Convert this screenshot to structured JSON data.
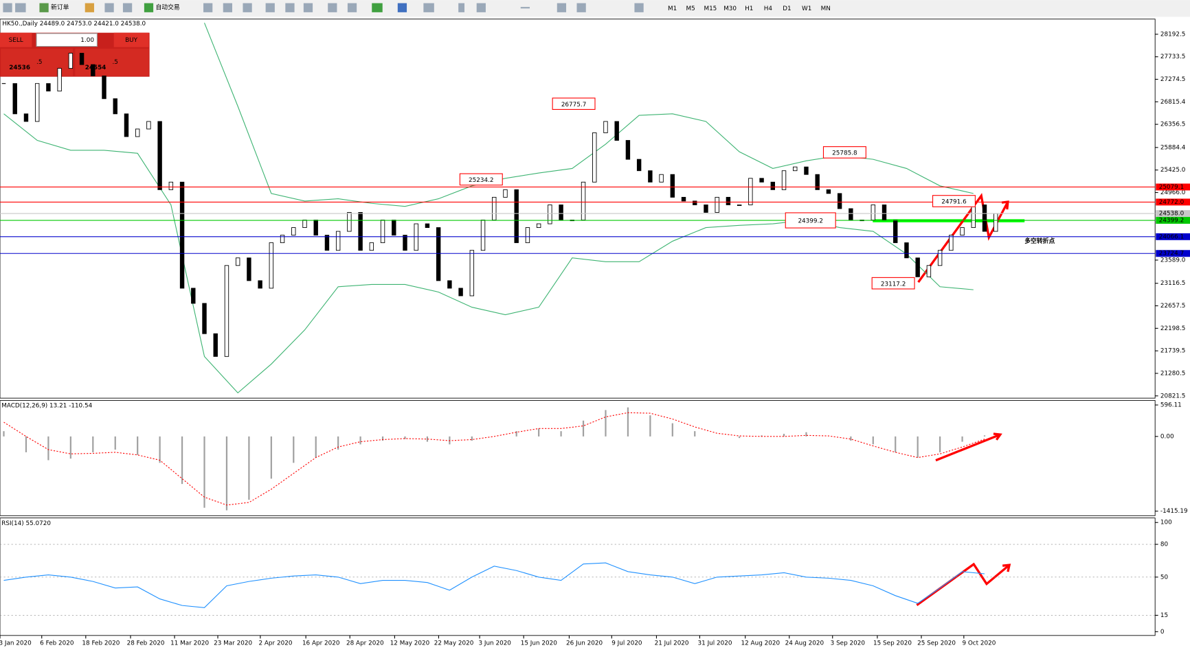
{
  "toolbar": {
    "new_order": "新订单",
    "auto_trading": "自动交易",
    "timeframes": [
      "M1",
      "M5",
      "M15",
      "M30",
      "H1",
      "H4",
      "D1",
      "W1",
      "MN"
    ]
  },
  "trade_panel": {
    "sell": "SELL",
    "lot": "1.00",
    "buy": "BUY",
    "bid": "24536",
    "bid_pips": ".5",
    "ask": "24554",
    "ask_pips": ".5"
  },
  "time_axis": [
    "3 Jan 2020",
    "6 Feb 2020",
    "18 Feb 2020",
    "28 Feb 2020",
    "11 Mar 2020",
    "23 Mar 2020",
    "2 Apr 2020",
    "16 Apr 2020",
    "28 Apr 2020",
    "12 May 2020",
    "22 May 2020",
    "3 Jun 2020",
    "15 Jun 2020",
    "26 Jun 2020",
    "9 Jul 2020",
    "21 Jul 2020",
    "31 Jul 2020",
    "12 Aug 2020",
    "24 Aug 2020",
    "3 Sep 2020",
    "15 Sep 2020",
    "25 Sep 2020",
    "9 Oct 2020"
  ],
  "chart_data": [
    {
      "type": "candlestick",
      "header": "HK50.,Daily  24489.0 24753.0 24421.0 24538.0",
      "closes": [
        27188,
        26570,
        26415,
        27188,
        27034,
        27497,
        27806,
        27574,
        27343,
        26879,
        26570,
        26106,
        26261,
        26415,
        25024,
        25179,
        23016,
        22707,
        22089,
        21625,
        23479,
        23634,
        23170,
        23016,
        23943,
        24097,
        24252,
        24406,
        24097,
        23788,
        24175,
        24561,
        23788,
        23943,
        24406,
        24097,
        23788,
        24329,
        24252,
        23170,
        23016,
        22861,
        23788,
        24406,
        24870,
        25024,
        23943,
        24252,
        24329,
        24715,
        24406,
        24406,
        25179,
        26184,
        26415,
        26029,
        25643,
        25411,
        25179,
        25334,
        24870,
        24793,
        24715,
        24561,
        24870,
        24715,
        24715,
        25256,
        25179,
        25024,
        25411,
        25488,
        25334,
        25024,
        24947,
        24638,
        24406,
        24406,
        24715,
        24406,
        23943,
        23634,
        23248,
        23479,
        23788,
        24097,
        24252,
        24715,
        24175,
        24538
      ],
      "upper_band": [
        null,
        null,
        null,
        null,
        null,
        null,
        28424,
        26724,
        24947,
        24793,
        24839,
        24746,
        24684,
        24839,
        25102,
        25256,
        25364,
        25457,
        25952,
        26539,
        26570,
        26415,
        25797,
        25457,
        25612,
        25720,
        25643,
        25457,
        25102,
        24947
      ],
      "lower_band": [
        26570,
        26029,
        25828,
        25828,
        25766,
        24715,
        21625,
        20883,
        21470,
        22166,
        23046,
        23093,
        23093,
        22938,
        22629,
        22475,
        22629,
        23634,
        23556,
        23556,
        23974,
        24252,
        24298,
        24329,
        24406,
        24252,
        24175,
        23711,
        23046,
        22985
      ],
      "band_color": "#3cb371",
      "ylim": [
        20775,
        28501.6
      ],
      "yticks": [
        28192.5,
        27733.5,
        27274.5,
        26815.4,
        26356.5,
        25884.4,
        {
          "value": 25425,
          "label": "25425.0"
        },
        {
          "value": 24966,
          "label": "24966.0"
        },
        {
          "value": 23589,
          "label": "23589.0"
        },
        23116.5,
        22657.5,
        22198.5,
        21739.5,
        21280.5,
        20821.5
      ],
      "levels": [
        {
          "value": 25079.1,
          "color": "#ff0000",
          "text_color": "#ffffff"
        },
        {
          "value": 24772,
          "label": "24772.0",
          "color": "#ff0000",
          "text_color": "#ffffff"
        },
        {
          "value": 24538,
          "label": "24538.0",
          "color": "#c8c8c8",
          "text_color": "#000000"
        },
        {
          "value": 24399.2,
          "color": "#00c800",
          "text_color": "#ffffff"
        },
        {
          "value": 24066.1,
          "color": "#0000cc",
          "text_color": "#ffffff"
        },
        {
          "value": 23724.7,
          "color": "#0000cc",
          "text_color": "#ffffff"
        }
      ],
      "annotations": [
        26775.7,
        25234.2,
        25785.8,
        24791.6,
        24399.2,
        23117.2
      ],
      "note": "多空转折点"
    },
    {
      "type": "macd",
      "header": "MACD(12,26,9) 13.21 -110.54",
      "values": [
        100,
        -300,
        -450,
        -420,
        -300,
        -250,
        -350,
        -500,
        -900,
        -1350,
        -1400,
        -1200,
        -800,
        -500,
        -400,
        -250,
        -150,
        -80,
        -50,
        -100,
        -150,
        -80,
        0,
        100,
        150,
        100,
        300,
        500,
        550,
        400,
        250,
        100,
        0,
        -30,
        20,
        50,
        80,
        0,
        -80,
        -150,
        -300,
        -400,
        -300,
        -100,
        20
      ],
      "signal": [
        270,
        0,
        -250,
        -330,
        -320,
        -300,
        -350,
        -450,
        -800,
        -1150,
        -1300,
        -1250,
        -1000,
        -700,
        -400,
        -200,
        -100,
        -60,
        -40,
        -50,
        -80,
        -60,
        0,
        80,
        150,
        150,
        200,
        370,
        450,
        440,
        330,
        180,
        60,
        10,
        0,
        0,
        20,
        10,
        -50,
        -180,
        -300,
        -400,
        -330,
        -200,
        -50
      ],
      "color": "#a0a0a0",
      "signal_color": "#ff0000",
      "ylim": [
        -1501,
        682
      ],
      "yticks": [
        596.11,
        {
          "value": 0,
          "label": "0.00"
        },
        -1415.19
      ]
    },
    {
      "type": "line",
      "header": "RSI(14) 55.0720",
      "values": [
        47,
        50,
        52,
        50,
        46,
        40,
        41,
        30,
        24,
        22,
        42,
        46,
        49,
        51,
        52,
        50,
        44,
        47,
        47,
        45,
        38,
        50,
        60,
        56,
        50,
        47,
        62,
        63,
        55,
        52,
        50,
        44,
        50,
        51,
        52,
        54,
        50,
        49,
        47,
        42,
        33,
        26,
        40,
        55,
        53
      ],
      "color": "#1e90ff",
      "ylim": [
        0,
        100
      ],
      "yticks": [
        100,
        80,
        50,
        15,
        0
      ]
    }
  ]
}
